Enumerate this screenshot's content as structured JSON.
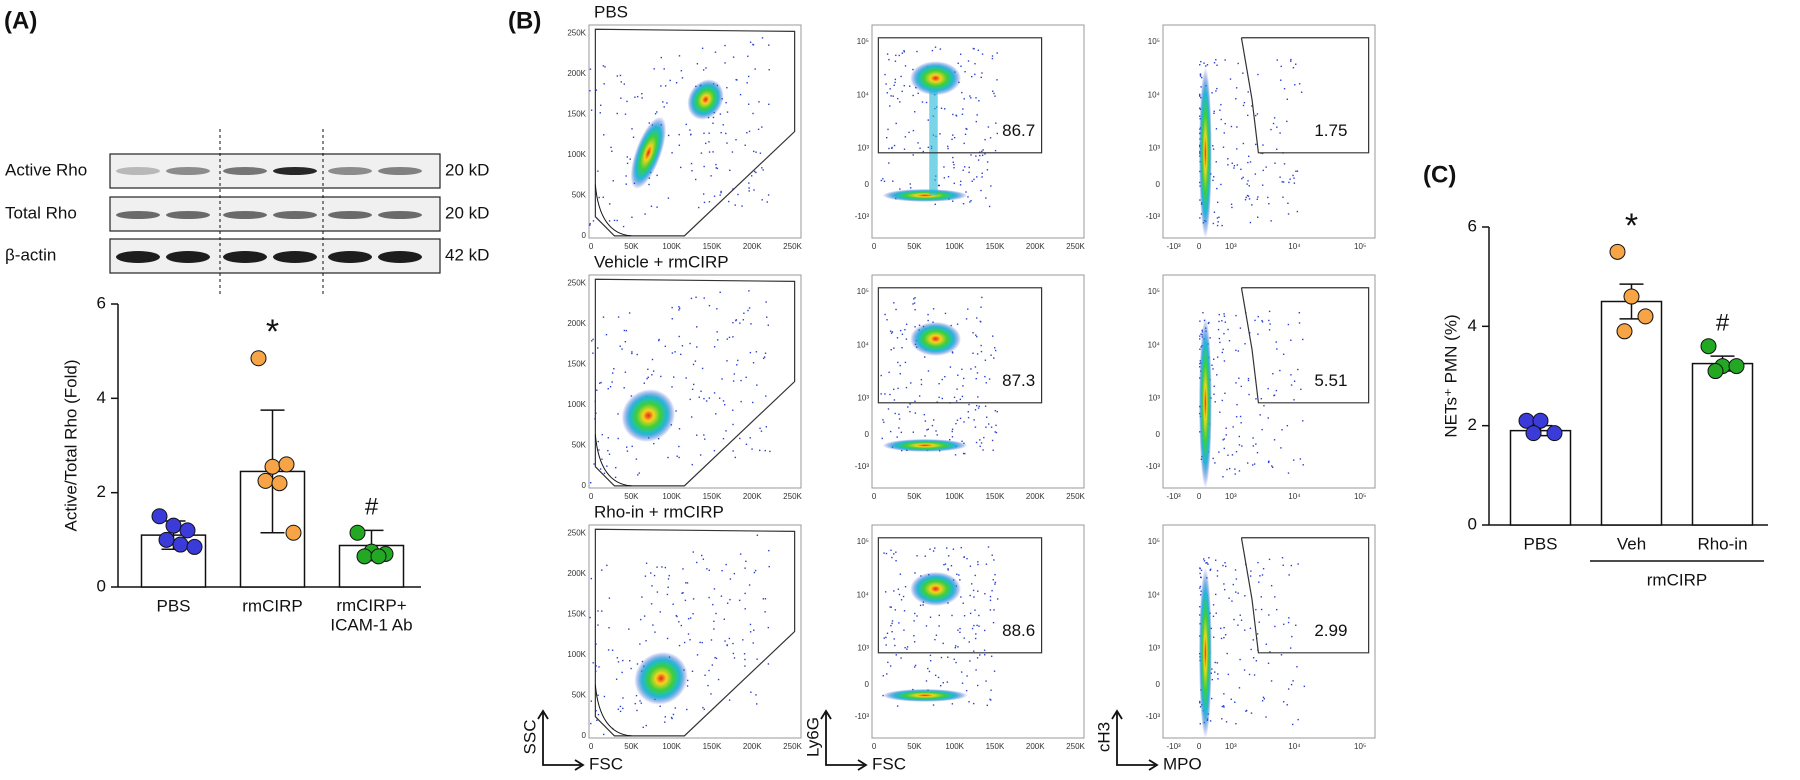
{
  "panels": [
    "(A)",
    "(B)",
    "(C)"
  ],
  "blot": {
    "rows": [
      {
        "label": "Active Rho",
        "size": "20 kD"
      },
      {
        "label": "Total Rho",
        "size": "20 kD"
      },
      {
        "label": "β-actin",
        "size": "42 kD"
      }
    ]
  },
  "flow": {
    "rows": [
      {
        "label": "PBS",
        "gates": [
          "86.7",
          "1.75"
        ]
      },
      {
        "label": "Vehicle + rmCIRP",
        "gates": [
          "87.3",
          "5.51"
        ]
      },
      {
        "label": "Rho-in + rmCIRP",
        "gates": [
          "88.6",
          "2.99"
        ]
      }
    ],
    "axis_labels": [
      [
        "SSC",
        "FSC"
      ],
      [
        "Ly6G",
        "FSC"
      ],
      [
        "cH3",
        "MPO"
      ]
    ],
    "linear_ticks": [
      "0",
      "50K",
      "100K",
      "150K",
      "200K",
      "250K"
    ],
    "log_ticks": [
      "-10³",
      "0",
      "10³",
      "10⁴",
      "10⁵"
    ]
  },
  "chart_data": [
    {
      "type": "bar",
      "ylabel": "Active/Total Rho (Fold)",
      "categories": [
        "PBS",
        "rmCIRP",
        "rmCIRP+\nICAM-1 Ab"
      ],
      "values": [
        1.1,
        2.45,
        0.88
      ],
      "errors": [
        0.3,
        1.3,
        0.32
      ],
      "points": [
        [
          1.5,
          1.3,
          1.2,
          1.0,
          0.9,
          0.85
        ],
        [
          4.85,
          2.55,
          2.6,
          2.25,
          2.2,
          1.15
        ],
        [
          1.15,
          0.75,
          0.7,
          0.65,
          0.65
        ]
      ],
      "colors": [
        "#3b3bd9",
        "#f6a445",
        "#23a823"
      ],
      "ylim": [
        0,
        6
      ],
      "yticks": [
        0,
        2,
        4,
        6
      ],
      "annotations": [
        {
          "text": "*",
          "category": "rmCIRP"
        },
        {
          "text": "#",
          "category": "rmCIRP+\nICAM-1 Ab"
        }
      ]
    },
    {
      "type": "bar",
      "ylabel": "NETs⁺ PMN (%)",
      "categories": [
        "PBS",
        "Veh",
        "Rho-in"
      ],
      "values": [
        1.9,
        4.5,
        3.25
      ],
      "errors": [
        0.1,
        0.35,
        0.15
      ],
      "points": [
        [
          2.1,
          2.1,
          1.85,
          1.85
        ],
        [
          5.5,
          4.6,
          4.2,
          3.9
        ],
        [
          3.6,
          3.2,
          3.2,
          3.1
        ]
      ],
      "colors": [
        "#3b3bd9",
        "#f6a445",
        "#23a823"
      ],
      "ylim": [
        0,
        6
      ],
      "yticks": [
        0,
        2,
        4,
        6
      ],
      "annotations": [
        {
          "text": "*",
          "category": "Veh"
        },
        {
          "text": "#",
          "category": "Rho-in"
        }
      ],
      "group": {
        "label": "rmCIRP",
        "categories": [
          "Veh",
          "Rho-in"
        ]
      }
    }
  ]
}
